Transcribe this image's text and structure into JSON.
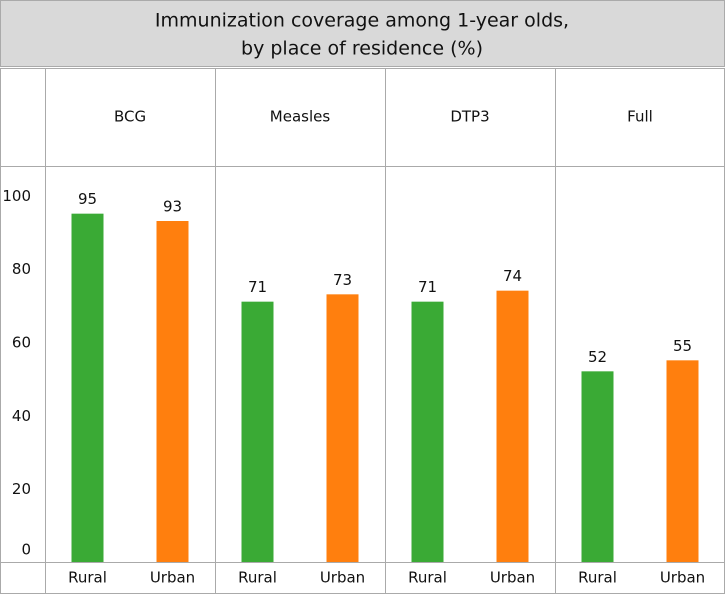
{
  "chart_data": {
    "type": "bar",
    "title": [
      "Immunization coverage among 1-year olds,",
      "by place of residence (%)"
    ],
    "categories": [
      "Rural",
      "Urban"
    ],
    "colors": [
      "#3aaa35",
      "#ff7f0e"
    ],
    "panels": [
      {
        "name": "BCG",
        "values": [
          95,
          93
        ]
      },
      {
        "name": "Measles",
        "values": [
          71,
          73
        ]
      },
      {
        "name": "DTP3",
        "values": [
          71,
          74
        ]
      },
      {
        "name": "Full",
        "values": [
          52,
          55
        ]
      }
    ],
    "ylim": [
      0,
      108
    ],
    "yticks": [
      0,
      20,
      40,
      60,
      80,
      100
    ]
  }
}
